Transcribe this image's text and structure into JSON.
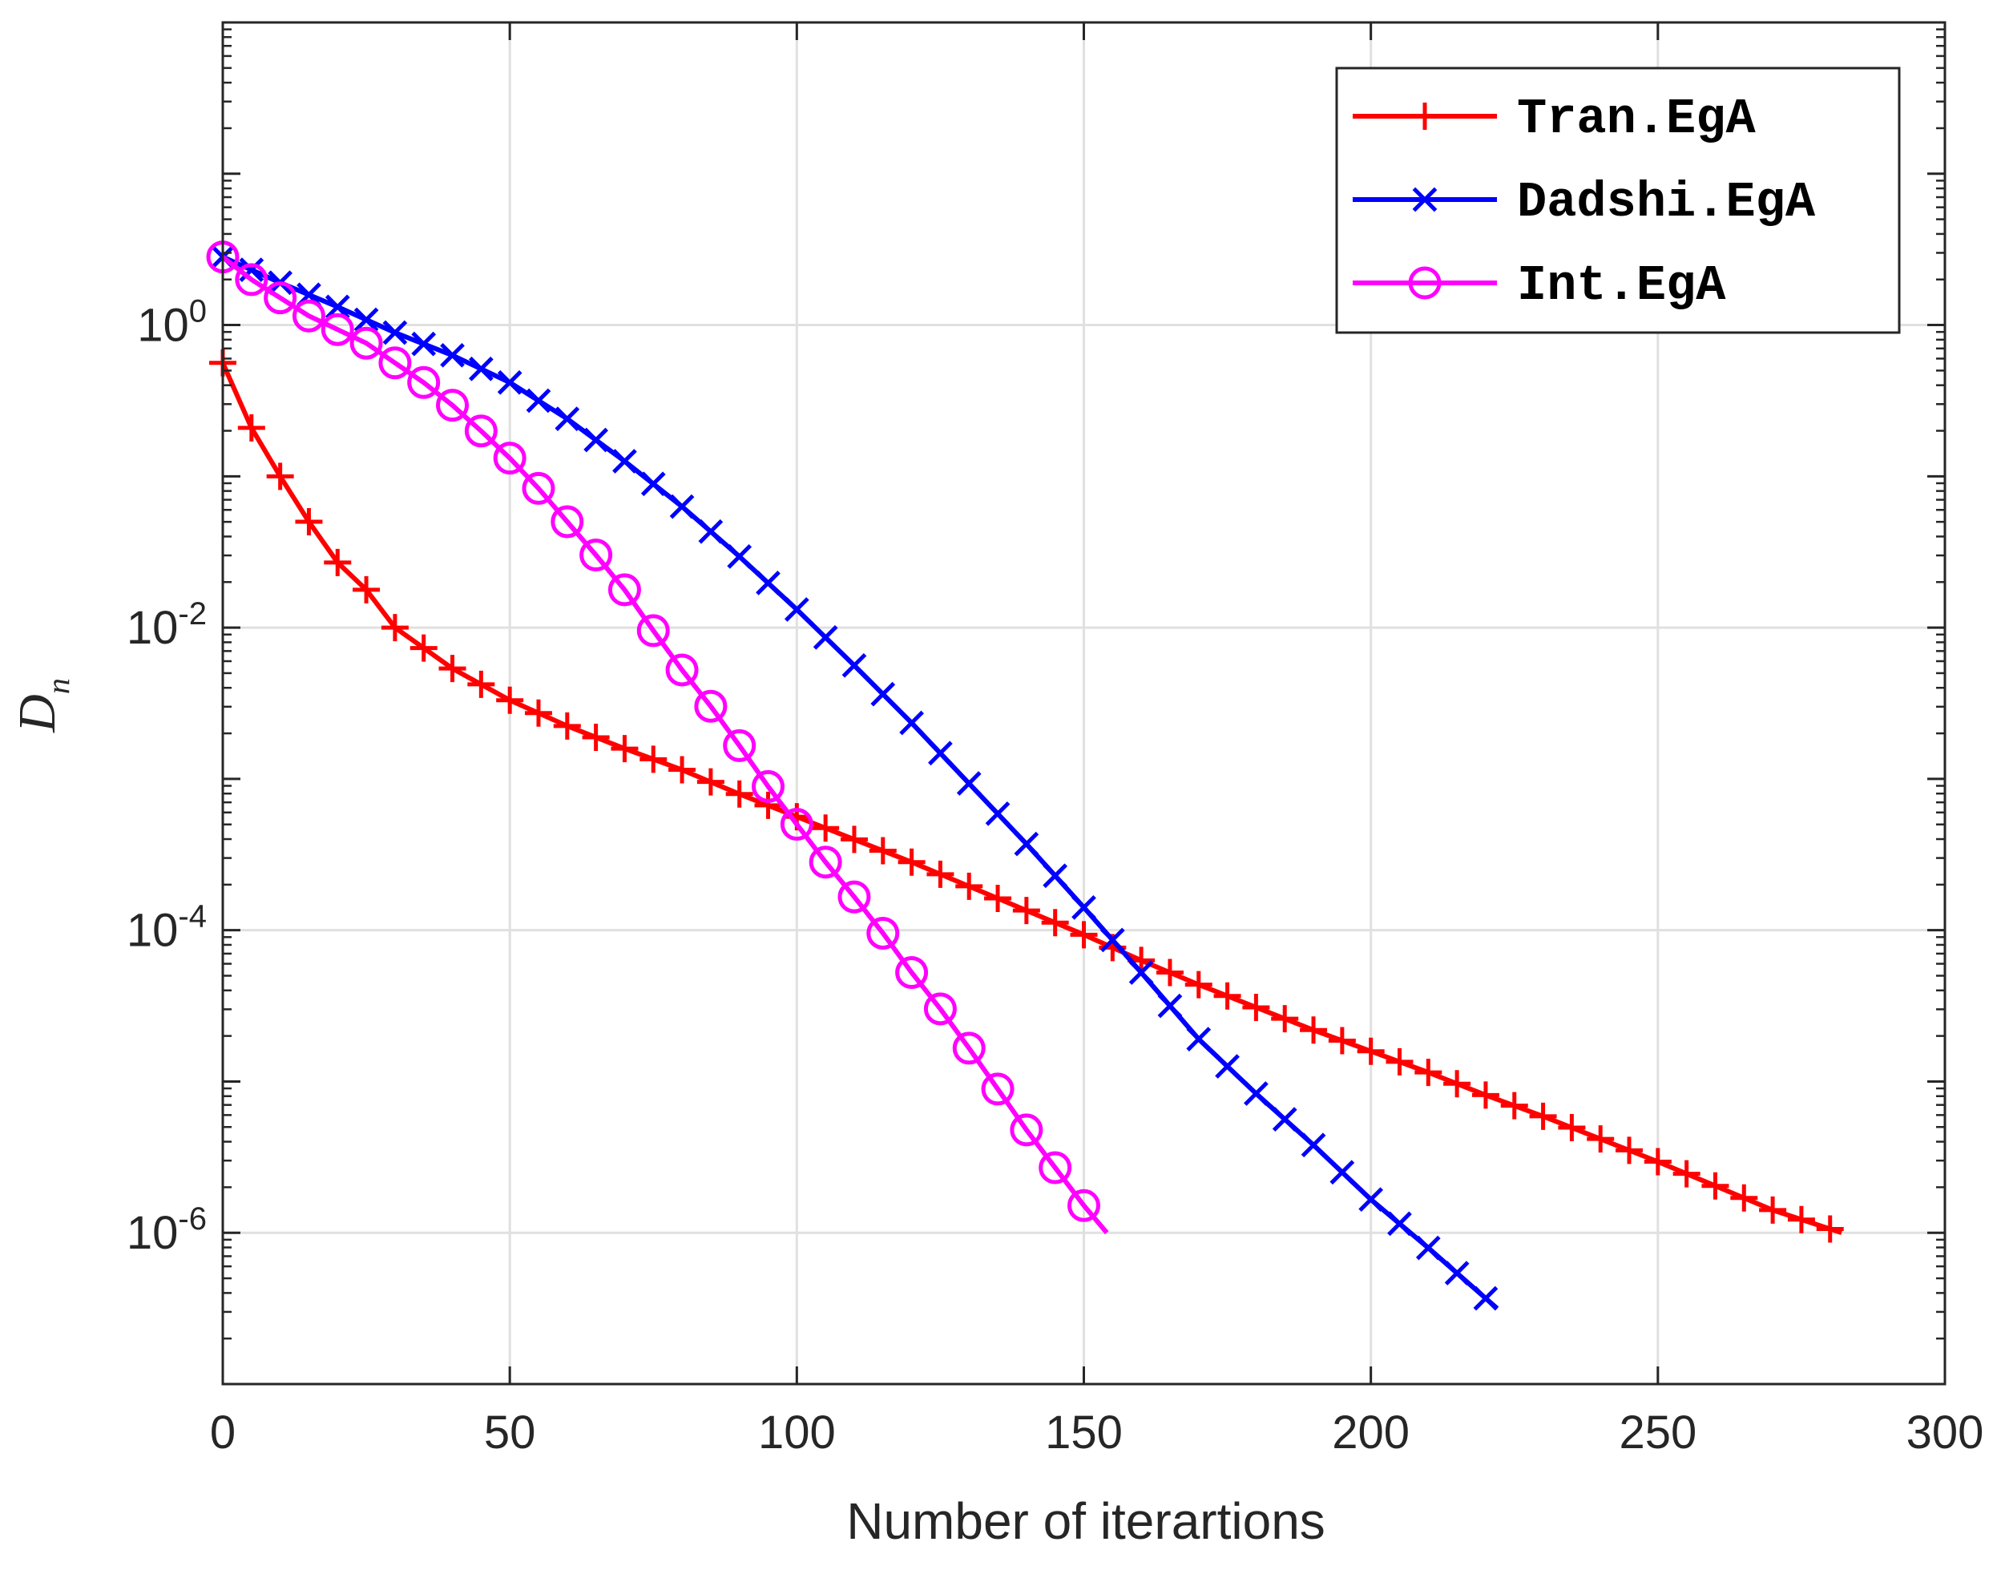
{
  "chart_data": {
    "type": "line",
    "title": "",
    "xlabel": "Number of iterartions",
    "ylabel": {
      "base": "D",
      "sub": "n"
    },
    "xlim": [
      0,
      300
    ],
    "ylim_log10": [
      -7,
      2
    ],
    "yscale": "log",
    "grid": true,
    "legend_position": "top-right",
    "x_ticks": [
      "0",
      "50",
      "100",
      "150",
      "200",
      "250",
      "300"
    ],
    "y_ticks": [
      {
        "base": "10",
        "exp": "0"
      },
      {
        "base": "10",
        "exp": "-2"
      },
      {
        "base": "10",
        "exp": "-4"
      },
      {
        "base": "10",
        "exp": "-6"
      }
    ],
    "series": [
      {
        "name": "Tran.EgA",
        "color": "#ff0000",
        "marker": "plus",
        "x": [
          0,
          5,
          10,
          15,
          20,
          25,
          30,
          40,
          50,
          60,
          70,
          80,
          90,
          100,
          110,
          120,
          130,
          140,
          150,
          160,
          170,
          180,
          190,
          200,
          210,
          220,
          230,
          240,
          250,
          260,
          270,
          282
        ],
        "log10_y": [
          -0.25,
          -0.68,
          -1.0,
          -1.3,
          -1.57,
          -1.75,
          -2.0,
          -2.27,
          -2.48,
          -2.65,
          -2.8,
          -2.94,
          -3.1,
          -3.25,
          -3.4,
          -3.55,
          -3.71,
          -3.87,
          -4.03,
          -4.2,
          -4.36,
          -4.51,
          -4.66,
          -4.8,
          -4.94,
          -5.09,
          -5.23,
          -5.38,
          -5.53,
          -5.69,
          -5.85,
          -6.0
        ]
      },
      {
        "name": "Dadshi.EgA",
        "color": "#0000ff",
        "marker": "x",
        "x": [
          0,
          10,
          20,
          30,
          40,
          50,
          60,
          70,
          80,
          90,
          100,
          110,
          120,
          130,
          140,
          150,
          160,
          170,
          180,
          190,
          200,
          210,
          222
        ],
        "log10_y": [
          0.45,
          0.28,
          0.12,
          -0.05,
          -0.2,
          -0.38,
          -0.62,
          -0.9,
          -1.2,
          -1.53,
          -1.88,
          -2.25,
          -2.63,
          -3.03,
          -3.43,
          -3.85,
          -4.28,
          -4.72,
          -5.08,
          -5.42,
          -5.78,
          -6.1,
          -6.5
        ]
      },
      {
        "name": "Int.EgA",
        "color": "#ff00ff",
        "marker": "circle",
        "x": [
          0,
          5,
          10,
          15,
          20,
          25,
          30,
          35,
          40,
          45,
          50,
          55,
          60,
          65,
          70,
          75,
          80,
          85,
          90,
          95,
          100,
          105,
          110,
          115,
          120,
          125,
          130,
          135,
          140,
          145,
          150,
          154
        ],
        "log10_y": [
          0.45,
          0.3,
          0.18,
          0.06,
          -0.03,
          -0.12,
          -0.25,
          -0.38,
          -0.53,
          -0.7,
          -0.88,
          -1.08,
          -1.3,
          -1.52,
          -1.75,
          -2.02,
          -2.28,
          -2.52,
          -2.78,
          -3.05,
          -3.3,
          -3.55,
          -3.78,
          -4.02,
          -4.28,
          -4.52,
          -4.78,
          -5.05,
          -5.32,
          -5.57,
          -5.82,
          -6.0
        ]
      }
    ]
  }
}
